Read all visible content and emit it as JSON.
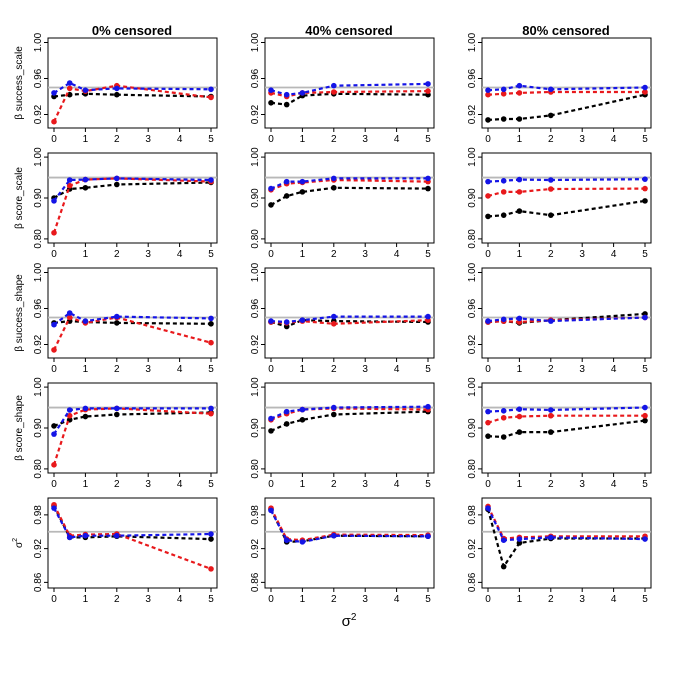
{
  "figure": {
    "x_axis_label": "σ",
    "x_axis_label_sup": "2",
    "column_titles": [
      "0% censored",
      "40% censored",
      "80% censored"
    ],
    "colors": {
      "reference": "#b8b8b8",
      "black": "#000000",
      "red": "#e8191c",
      "blue": "#1414e6"
    }
  },
  "chart_data": {
    "type": "line",
    "layout": "grid of 5 rows x 3 columns",
    "x": [
      0,
      0.5,
      1,
      2,
      5
    ],
    "x_ticks": [
      0,
      1,
      2,
      3,
      4,
      5
    ],
    "xlim": [
      0,
      5
    ],
    "series_order": [
      "black",
      "red",
      "blue"
    ],
    "rows": [
      {
        "ylabel": "β success_scale",
        "ylim": [
          0.905,
          1.005
        ],
        "yticks": [
          "0.92",
          "0.96",
          "1.00"
        ],
        "yticks_values": [
          0.92,
          0.96,
          1.0
        ],
        "reference": 0.95,
        "panels": [
          {
            "black": [
              0.94,
              0.942,
              0.943,
              0.942,
              0.94
            ],
            "red": [
              0.912,
              0.949,
              0.946,
              0.952,
              0.939
            ],
            "blue": [
              0.944,
              0.955,
              0.947,
              0.949,
              0.948
            ]
          },
          {
            "black": [
              0.933,
              0.931,
              0.941,
              0.943,
              0.942
            ],
            "red": [
              0.944,
              0.94,
              0.944,
              0.945,
              0.946
            ],
            "blue": [
              0.947,
              0.942,
              0.944,
              0.952,
              0.954
            ]
          },
          {
            "black": [
              0.914,
              0.915,
              0.915,
              0.919,
              0.942
            ],
            "red": [
              0.942,
              0.943,
              0.944,
              0.945,
              0.945
            ],
            "blue": [
              0.947,
              0.948,
              0.952,
              0.948,
              0.95
            ]
          }
        ]
      },
      {
        "ylabel": "β score_scale",
        "ylim": [
          0.79,
          1.01
        ],
        "yticks": [
          "0.80",
          "0.90",
          "1.00"
        ],
        "yticks_values": [
          0.8,
          0.9,
          1.0
        ],
        "reference": 0.95,
        "panels": [
          {
            "black": [
              0.9,
              0.922,
              0.925,
              0.933,
              0.938
            ],
            "red": [
              0.815,
              0.93,
              0.945,
              0.948,
              0.94
            ],
            "blue": [
              0.893,
              0.944,
              0.945,
              0.948,
              0.944
            ]
          },
          {
            "black": [
              0.883,
              0.905,
              0.915,
              0.925,
              0.923
            ],
            "red": [
              0.92,
              0.935,
              0.938,
              0.944,
              0.94
            ],
            "blue": [
              0.923,
              0.94,
              0.94,
              0.948,
              0.948
            ]
          },
          {
            "black": [
              0.855,
              0.858,
              0.868,
              0.858,
              0.893
            ],
            "red": [
              0.905,
              0.915,
              0.915,
              0.922,
              0.923
            ],
            "blue": [
              0.94,
              0.942,
              0.945,
              0.944,
              0.946
            ]
          }
        ]
      },
      {
        "ylabel": "β success_shape",
        "ylim": [
          0.905,
          1.005
        ],
        "yticks": [
          "0.92",
          "0.96",
          "1.00"
        ],
        "yticks_values": [
          0.92,
          0.96,
          1.0
        ],
        "reference": 0.95,
        "panels": [
          {
            "black": [
              0.944,
              0.946,
              0.945,
              0.944,
              0.943
            ],
            "red": [
              0.914,
              0.95,
              0.944,
              0.95,
              0.922
            ],
            "blue": [
              0.942,
              0.955,
              0.946,
              0.951,
              0.949
            ]
          },
          {
            "black": [
              0.945,
              0.94,
              0.947,
              0.946,
              0.945
            ],
            "red": [
              0.945,
              0.944,
              0.946,
              0.943,
              0.947
            ],
            "blue": [
              0.946,
              0.945,
              0.947,
              0.951,
              0.951
            ]
          },
          {
            "black": [
              0.945,
              0.946,
              0.944,
              0.947,
              0.954
            ],
            "red": [
              0.945,
              0.946,
              0.945,
              0.947,
              0.95
            ],
            "blue": [
              0.946,
              0.948,
              0.949,
              0.946,
              0.95
            ]
          }
        ]
      },
      {
        "ylabel": "β score_shape",
        "ylim": [
          0.79,
          1.01
        ],
        "yticks": [
          "0.80",
          "0.90",
          "1.00"
        ],
        "yticks_values": [
          0.8,
          0.9,
          1.0
        ],
        "reference": 0.95,
        "panels": [
          {
            "black": [
              0.905,
              0.92,
              0.928,
              0.933,
              0.938
            ],
            "red": [
              0.81,
              0.93,
              0.945,
              0.948,
              0.935
            ],
            "blue": [
              0.885,
              0.944,
              0.948,
              0.948,
              0.948
            ]
          },
          {
            "black": [
              0.893,
              0.91,
              0.92,
              0.933,
              0.94
            ],
            "red": [
              0.92,
              0.935,
              0.945,
              0.948,
              0.945
            ],
            "blue": [
              0.923,
              0.94,
              0.945,
              0.95,
              0.952
            ]
          },
          {
            "black": [
              0.88,
              0.878,
              0.89,
              0.89,
              0.918
            ],
            "red": [
              0.913,
              0.925,
              0.928,
              0.93,
              0.93
            ],
            "blue": [
              0.94,
              0.942,
              0.946,
              0.944,
              0.95
            ]
          }
        ]
      },
      {
        "ylabel": "σ",
        "ylabel_sup": "2",
        "ylim": [
          0.85,
          1.01
        ],
        "yticks": [
          "0.86",
          "0.92",
          "0.98"
        ],
        "yticks_values": [
          0.86,
          0.92,
          0.98
        ],
        "reference": 0.95,
        "panels": [
          {
            "black": [
              0.996,
              0.94,
              0.94,
              0.942,
              0.937
            ],
            "red": [
              0.998,
              0.943,
              0.945,
              0.946,
              0.884
            ],
            "blue": [
              0.992,
              0.94,
              0.943,
              0.943,
              0.946
            ]
          },
          {
            "black": [
              0.99,
              0.932,
              0.933,
              0.943,
              0.942
            ],
            "red": [
              0.992,
              0.937,
              0.935,
              0.945,
              0.944
            ],
            "blue": [
              0.988,
              0.935,
              0.932,
              0.943,
              0.942
            ]
          },
          {
            "black": [
              0.99,
              0.888,
              0.93,
              0.938,
              0.938
            ],
            "red": [
              0.995,
              0.938,
              0.94,
              0.942,
              0.942
            ],
            "blue": [
              0.992,
              0.935,
              0.937,
              0.94,
              0.937
            ]
          }
        ]
      }
    ]
  }
}
